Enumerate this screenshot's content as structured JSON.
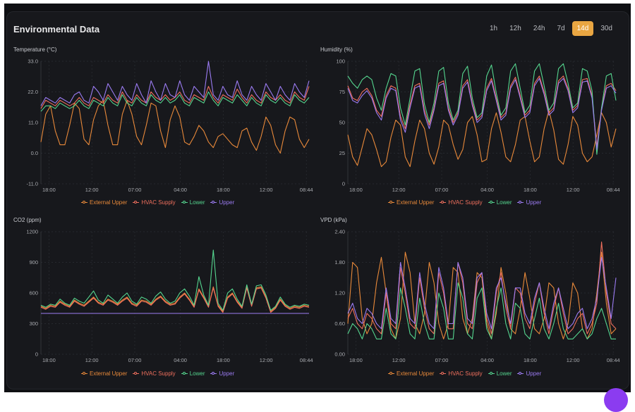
{
  "header": {
    "title": "Environmental Data"
  },
  "range_buttons": [
    "1h",
    "12h",
    "24h",
    "7d",
    "14d",
    "30d"
  ],
  "active_range": "14d",
  "colors": {
    "External Upper": "#e8893a",
    "HVAC Supply": "#ef6f5d",
    "Lower": "#55d68f",
    "Upper": "#9b7bf2",
    "accent": "#e9a642"
  },
  "x_tick_labels": [
    "18:00",
    "12:00",
    "07:00",
    "04:00",
    "18:00",
    "12:00",
    "08:44"
  ],
  "chart_data": [
    {
      "type": "line",
      "title": "Temperature (°C)",
      "ylim": [
        -11,
        33
      ],
      "y_ticks": [
        "33.0",
        "22.0",
        "11.0",
        "0.0",
        "-11.0"
      ],
      "series": [
        {
          "name": "External Upper",
          "values": [
            4,
            14,
            17,
            8,
            3,
            3,
            10,
            18,
            16,
            5,
            3,
            12,
            17,
            19,
            10,
            3,
            3,
            14,
            19,
            14,
            6,
            3,
            10,
            18,
            17,
            8,
            2,
            12,
            17,
            13,
            4,
            3,
            6,
            10,
            8,
            4,
            2,
            6,
            7,
            5,
            3,
            2,
            8,
            9,
            4,
            1,
            6,
            13,
            10,
            3,
            0,
            8,
            13,
            12,
            5,
            2,
            5
          ]
        },
        {
          "name": "HVAC Supply",
          "values": [
            16,
            19,
            18,
            17,
            19,
            18,
            17,
            18,
            20,
            18,
            17,
            20,
            19,
            18,
            21,
            19,
            18,
            22,
            19,
            18,
            21,
            19,
            18,
            22,
            20,
            19,
            21,
            19,
            20,
            22,
            19,
            18,
            21,
            20,
            19,
            24,
            20,
            18,
            21,
            20,
            19,
            23,
            20,
            18,
            21,
            19,
            18,
            22,
            20,
            19,
            21,
            19,
            18,
            22,
            20,
            19,
            24
          ]
        },
        {
          "name": "Lower",
          "values": [
            15,
            17,
            17,
            16,
            18,
            17,
            16,
            17,
            19,
            17,
            16,
            19,
            18,
            17,
            20,
            18,
            17,
            21,
            18,
            17,
            20,
            18,
            17,
            21,
            19,
            18,
            20,
            18,
            19,
            21,
            18,
            17,
            20,
            19,
            18,
            22,
            19,
            17,
            20,
            19,
            18,
            21,
            19,
            17,
            20,
            18,
            17,
            21,
            19,
            18,
            20,
            18,
            17,
            21,
            19,
            18,
            20
          ]
        },
        {
          "name": "Upper",
          "values": [
            17,
            20,
            19,
            18,
            20,
            19,
            18,
            21,
            22,
            19,
            18,
            24,
            22,
            19,
            25,
            22,
            19,
            24,
            21,
            19,
            25,
            21,
            18,
            26,
            22,
            19,
            25,
            21,
            20,
            26,
            21,
            19,
            24,
            22,
            20,
            33,
            21,
            19,
            24,
            21,
            20,
            26,
            21,
            19,
            24,
            21,
            19,
            25,
            22,
            19,
            24,
            21,
            19,
            25,
            22,
            20,
            26
          ]
        }
      ]
    },
    {
      "type": "line",
      "title": "Humidity (%)",
      "ylim": [
        0,
        100
      ],
      "y_ticks": [
        "100",
        "75",
        "50",
        "25",
        "0"
      ],
      "series": [
        {
          "name": "External Upper",
          "values": [
            40,
            22,
            15,
            30,
            45,
            40,
            28,
            14,
            18,
            38,
            52,
            48,
            22,
            14,
            35,
            52,
            45,
            25,
            16,
            30,
            52,
            48,
            32,
            20,
            28,
            50,
            55,
            40,
            18,
            20,
            45,
            58,
            42,
            22,
            18,
            32,
            52,
            55,
            35,
            18,
            22,
            45,
            60,
            44,
            20,
            16,
            32,
            55,
            48,
            25,
            18,
            22,
            40,
            58,
            50,
            30,
            45
          ]
        },
        {
          "name": "HVAC Supply",
          "values": [
            80,
            70,
            68,
            75,
            78,
            72,
            60,
            55,
            72,
            80,
            78,
            55,
            45,
            65,
            80,
            82,
            60,
            48,
            62,
            82,
            84,
            62,
            50,
            58,
            80,
            85,
            66,
            52,
            56,
            78,
            86,
            70,
            54,
            58,
            80,
            87,
            72,
            56,
            60,
            82,
            88,
            75,
            58,
            62,
            84,
            88,
            78,
            60,
            64,
            85,
            86,
            72,
            30,
            62,
            80,
            82,
            76
          ]
        },
        {
          "name": "Lower",
          "values": [
            88,
            82,
            78,
            85,
            88,
            85,
            70,
            60,
            78,
            90,
            88,
            62,
            48,
            70,
            92,
            94,
            65,
            50,
            66,
            92,
            95,
            66,
            52,
            60,
            90,
            96,
            70,
            54,
            58,
            88,
            97,
            74,
            56,
            62,
            92,
            98,
            78,
            58,
            64,
            92,
            98,
            80,
            60,
            66,
            94,
            98,
            82,
            62,
            66,
            94,
            92,
            76,
            24,
            62,
            88,
            90,
            68
          ]
        },
        {
          "name": "Upper",
          "values": [
            78,
            68,
            66,
            72,
            76,
            70,
            58,
            52,
            70,
            78,
            76,
            52,
            42,
            62,
            78,
            80,
            57,
            45,
            60,
            80,
            82,
            60,
            48,
            56,
            78,
            83,
            64,
            50,
            54,
            76,
            84,
            68,
            52,
            56,
            78,
            85,
            70,
            54,
            58,
            80,
            86,
            73,
            56,
            60,
            82,
            86,
            76,
            58,
            62,
            83,
            84,
            70,
            28,
            60,
            78,
            80,
            74
          ]
        }
      ]
    },
    {
      "type": "line",
      "title": "CO2 (ppm)",
      "ylim": [
        0,
        1200
      ],
      "y_ticks": [
        "1200",
        "900",
        "600",
        "300",
        "0"
      ],
      "series": [
        {
          "name": "External Upper",
          "values": [
            470,
            450,
            480,
            470,
            520,
            490,
            470,
            530,
            500,
            480,
            520,
            560,
            510,
            490,
            540,
            520,
            490,
            530,
            560,
            500,
            480,
            530,
            520,
            490,
            540,
            570,
            520,
            490,
            500,
            560,
            600,
            540,
            470,
            640,
            560,
            470,
            660,
            480,
            420,
            560,
            600,
            520,
            460,
            660,
            480,
            650,
            660,
            560,
            420,
            460,
            540,
            480,
            450,
            470,
            460,
            480,
            470
          ]
        },
        {
          "name": "HVAC Supply",
          "values": [
            460,
            440,
            470,
            460,
            510,
            480,
            460,
            520,
            490,
            470,
            510,
            550,
            500,
            480,
            530,
            510,
            480,
            520,
            550,
            490,
            470,
            520,
            510,
            480,
            530,
            560,
            510,
            480,
            490,
            550,
            590,
            530,
            460,
            630,
            550,
            460,
            650,
            470,
            410,
            550,
            590,
            510,
            450,
            650,
            470,
            640,
            650,
            550,
            410,
            450,
            530,
            470,
            440,
            460,
            450,
            470,
            460
          ]
        },
        {
          "name": "Lower",
          "values": [
            480,
            460,
            490,
            480,
            540,
            500,
            480,
            550,
            520,
            500,
            560,
            620,
            530,
            500,
            580,
            540,
            500,
            560,
            600,
            520,
            490,
            560,
            540,
            500,
            570,
            610,
            540,
            500,
            520,
            600,
            640,
            570,
            480,
            760,
            580,
            480,
            1020,
            500,
            430,
            600,
            640,
            540,
            470,
            680,
            490,
            670,
            680,
            580,
            430,
            470,
            560,
            490,
            460,
            480,
            470,
            490,
            480
          ]
        },
        {
          "name": "Upper",
          "values": [
            400,
            400,
            400,
            400,
            400,
            400,
            400,
            400,
            400,
            400,
            400,
            400,
            400,
            400,
            400,
            400,
            400,
            400,
            400,
            400,
            400,
            400,
            400,
            400,
            400,
            400,
            400,
            400,
            400,
            400,
            400,
            400,
            400,
            400,
            400,
            400,
            400,
            400,
            400,
            400,
            400,
            400,
            400,
            400,
            400,
            400,
            400,
            400,
            400,
            400,
            400,
            400,
            400,
            400,
            400,
            400,
            400
          ]
        }
      ]
    },
    {
      "type": "line",
      "title": "VPD (kPa)",
      "ylim": [
        0,
        2.4
      ],
      "y_ticks": [
        "2.40",
        "1.80",
        "1.20",
        "0.60",
        "0.00"
      ],
      "series": [
        {
          "name": "External Upper",
          "values": [
            0.6,
            1.8,
            1.7,
            0.7,
            0.4,
            0.6,
            1.4,
            1.9,
            1.2,
            0.5,
            0.3,
            0.7,
            2.0,
            1.6,
            0.6,
            0.4,
            0.8,
            1.8,
            1.4,
            0.6,
            0.3,
            0.6,
            1.7,
            1.6,
            0.7,
            0.4,
            0.7,
            1.6,
            1.5,
            0.6,
            0.3,
            0.8,
            1.7,
            1.2,
            0.5,
            0.4,
            0.9,
            1.6,
            1.1,
            0.5,
            0.4,
            0.7,
            1.4,
            1.3,
            0.6,
            0.3,
            0.6,
            1.4,
            1.2,
            0.5,
            0.3,
            0.5,
            1.2,
            2.0,
            1.0,
            0.4,
            0.5
          ]
        },
        {
          "name": "HVAC Supply",
          "values": [
            0.7,
            0.9,
            0.6,
            0.5,
            0.8,
            0.7,
            0.5,
            0.4,
            1.2,
            0.6,
            0.5,
            1.7,
            1.2,
            0.6,
            0.5,
            1.5,
            0.9,
            0.5,
            0.4,
            1.6,
            1.2,
            0.5,
            0.5,
            1.8,
            1.4,
            0.6,
            0.5,
            1.4,
            1.6,
            0.7,
            0.4,
            1.2,
            1.6,
            0.9,
            0.5,
            1.3,
            1.2,
            0.7,
            0.5,
            1.0,
            1.4,
            0.8,
            0.4,
            0.9,
            1.3,
            0.8,
            0.4,
            0.5,
            0.7,
            0.8,
            0.4,
            0.6,
            1.0,
            2.2,
            1.2,
            0.6,
            0.5
          ]
        },
        {
          "name": "Lower",
          "values": [
            0.4,
            0.6,
            0.5,
            0.3,
            0.6,
            0.5,
            0.3,
            0.3,
            0.9,
            0.4,
            0.3,
            1.3,
            0.9,
            0.4,
            0.3,
            1.1,
            0.6,
            0.3,
            0.3,
            1.2,
            0.9,
            0.3,
            0.3,
            1.4,
            1.1,
            0.4,
            0.3,
            1.1,
            1.3,
            0.5,
            0.3,
            0.9,
            1.3,
            0.6,
            0.3,
            1.0,
            0.9,
            0.4,
            0.3,
            0.7,
            1.1,
            0.5,
            0.3,
            0.6,
            1.0,
            0.5,
            0.3,
            0.3,
            0.4,
            0.5,
            0.3,
            0.4,
            0.7,
            0.9,
            0.6,
            0.3,
            0.3
          ]
        },
        {
          "name": "Upper",
          "values": [
            0.8,
            1.0,
            0.7,
            0.6,
            0.9,
            0.8,
            0.6,
            0.5,
            1.3,
            0.7,
            0.6,
            1.8,
            1.3,
            0.7,
            0.6,
            1.6,
            1.0,
            0.6,
            0.5,
            1.7,
            1.3,
            0.6,
            0.6,
            1.8,
            1.5,
            0.7,
            0.6,
            1.5,
            1.6,
            0.8,
            0.5,
            1.3,
            1.5,
            1.0,
            0.6,
            1.3,
            1.3,
            0.8,
            0.6,
            1.1,
            1.4,
            0.9,
            0.5,
            1.0,
            1.3,
            0.9,
            0.5,
            0.6,
            0.8,
            0.9,
            0.5,
            0.7,
            1.1,
            1.9,
            1.3,
            0.7,
            1.5
          ]
        }
      ]
    }
  ]
}
